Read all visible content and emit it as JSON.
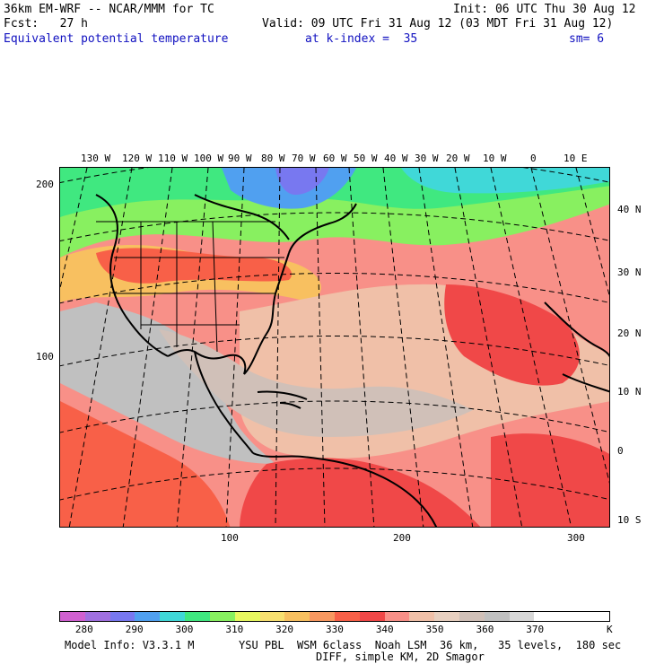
{
  "header": {
    "model": "36km EM-WRF -- NCAR/MMM for TC",
    "init": "Init: 06 UTC Thu 30 Aug 12",
    "fcst": "Fcst:   27 h",
    "valid": "Valid: 09 UTC Fri 31 Aug 12 (03 MDT Fri 31 Aug 12)",
    "field": "Equivalent potential temperature",
    "level": "at k-index =  35",
    "smooth": "sm= 6"
  },
  "lon_labels": [
    "130 W",
    "120 W",
    "110 W",
    "100 W",
    "90 W",
    "80 W",
    "70 W",
    "60 W",
    "50 W",
    "40 W",
    "30 W",
    "20 W",
    "10 W",
    "0",
    "10 E"
  ],
  "lat_labels": [
    "40 N",
    "30 N",
    "20 N",
    "10 N",
    "0",
    "10 S"
  ],
  "y_ticks": [
    "200",
    "100"
  ],
  "x_ticks": [
    "100",
    "200",
    "300"
  ],
  "legend": {
    "labels": [
      "280",
      "290",
      "300",
      "310",
      "320",
      "330",
      "340",
      "350",
      "360",
      "370"
    ],
    "unit": "K",
    "colors": [
      "#d060d0",
      "#a070e0",
      "#7878f0",
      "#50a0f0",
      "#40d8d8",
      "#40e880",
      "#88f060",
      "#e8f860",
      "#f8e070",
      "#f8c060",
      "#f89860",
      "#f86048",
      "#f04848",
      "#f89088",
      "#f0c0a8",
      "#e8d0c0",
      "#d0c0b8",
      "#c0c0c0",
      "#d8d8d8",
      "#ffffff",
      "#ffffff",
      "#ffffff"
    ]
  },
  "footer": {
    "line1_left": "Model Info: V3.3.1 M",
    "line1_right": "YSU PBL  WSM 6class  Noah LSM  36 km,   35 levels,  180 sec",
    "line2": "DIFF, simple KM, 2D Smagor"
  }
}
